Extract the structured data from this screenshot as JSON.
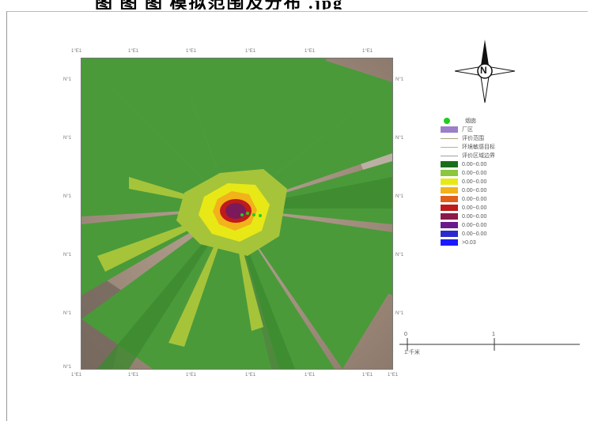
{
  "title_fragment": "图 图 图   模拟范围及分布   .jpg",
  "map": {
    "top_ticks": [
      "1°E1",
      "1°E1",
      "1°E1",
      "1°E1",
      "1°E1",
      "1°E1"
    ],
    "bottom_ticks": [
      "1°E1",
      "1°E1",
      "1°E1",
      "1°E1",
      "1°E1",
      "1°E1",
      "1°E1"
    ],
    "left_ticks": [
      "N°1",
      "N°1",
      "N°1",
      "N°1",
      "N°1",
      "N°1"
    ],
    "right_ticks": [
      "N°1",
      "N°1",
      "N°1",
      "N°1",
      "N°1"
    ]
  },
  "compass": {
    "letter": "N"
  },
  "legend": {
    "items": [
      {
        "label": "烟囱",
        "kind": "dot",
        "color": "#22cc22"
      },
      {
        "label": "厂区",
        "kind": "fill",
        "color": "#9b7fc9"
      },
      {
        "label": "评价范围",
        "kind": "line",
        "color": "#b0a080"
      },
      {
        "label": "环境敏感目标",
        "kind": "line",
        "color": "#c8b080"
      },
      {
        "label": "评价区域边界",
        "kind": "line",
        "color": "#a0a0a0"
      },
      {
        "label": "0.00~0.00",
        "kind": "fill",
        "color": "#1a6e1a"
      },
      {
        "label": "0.00~0.00",
        "kind": "fill",
        "color": "#8cc63f"
      },
      {
        "label": "0.00~0.00",
        "kind": "fill",
        "color": "#e8e817"
      },
      {
        "label": "0.00~0.00",
        "kind": "fill",
        "color": "#f2b21a"
      },
      {
        "label": "0.00~0.00",
        "kind": "fill",
        "color": "#e0601a"
      },
      {
        "label": "0.00~0.00",
        "kind": "fill",
        "color": "#c01a1a"
      },
      {
        "label": "0.00~0.00",
        "kind": "fill",
        "color": "#8a1a4a"
      },
      {
        "label": "0.00~0.00",
        "kind": "fill",
        "color": "#6a1a8a"
      },
      {
        "label": "0.00~0.00",
        "kind": "fill",
        "color": "#2a2acc"
      },
      {
        "label": ">0.03",
        "kind": "fill",
        "color": "#1a1aff"
      }
    ]
  },
  "scale_bar": {
    "start": "0",
    "end": "1",
    "unit": "1:千米"
  },
  "colors": {
    "base_green": "#4a9a3a",
    "background_terrain": "#a89484"
  }
}
